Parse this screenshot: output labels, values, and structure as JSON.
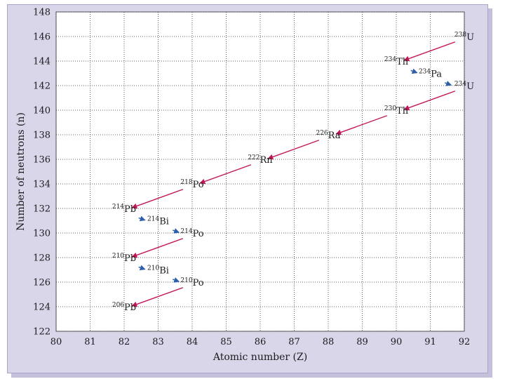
{
  "chart_data": {
    "type": "scatter",
    "title": "",
    "xlabel": "Atomic number (Z)",
    "ylabel": "Number of neutrons (n)",
    "xlim": [
      80,
      92
    ],
    "ylim": [
      122,
      148
    ],
    "x_ticks": [
      "80",
      "81",
      "82",
      "83",
      "84",
      "85",
      "86",
      "87",
      "88",
      "89",
      "90",
      "91",
      "92"
    ],
    "y_ticks": [
      "122",
      "124",
      "126",
      "128",
      "130",
      "132",
      "134",
      "136",
      "138",
      "140",
      "142",
      "144",
      "146",
      "148"
    ],
    "grid": true,
    "legend": "none",
    "colors": {
      "alpha": "#c2185b",
      "beta": "#2e5fa8",
      "plot_bg": "#ffffff",
      "frame": "#d9d6ea"
    },
    "nuclides": [
      {
        "mass": "238",
        "symbol": "U",
        "z": 92,
        "n": 146
      },
      {
        "mass": "234",
        "symbol": "Th",
        "z": 90,
        "n": 144
      },
      {
        "mass": "234",
        "symbol": "Pa",
        "z": 91,
        "n": 143
      },
      {
        "mass": "234",
        "symbol": "U",
        "z": 92,
        "n": 142
      },
      {
        "mass": "230",
        "symbol": "Th",
        "z": 90,
        "n": 140
      },
      {
        "mass": "226",
        "symbol": "Ra",
        "z": 88,
        "n": 138
      },
      {
        "mass": "222",
        "symbol": "Rn",
        "z": 86,
        "n": 136
      },
      {
        "mass": "218",
        "symbol": "Po",
        "z": 84,
        "n": 134
      },
      {
        "mass": "214",
        "symbol": "Pb",
        "z": 82,
        "n": 132
      },
      {
        "mass": "214",
        "symbol": "Bi",
        "z": 83,
        "n": 131
      },
      {
        "mass": "214",
        "symbol": "Po",
        "z": 84,
        "n": 130
      },
      {
        "mass": "210",
        "symbol": "Pb",
        "z": 82,
        "n": 128
      },
      {
        "mass": "210",
        "symbol": "Bi",
        "z": 83,
        "n": 127
      },
      {
        "mass": "210",
        "symbol": "Po",
        "z": 84,
        "n": 126
      },
      {
        "mass": "206",
        "symbol": "Pb",
        "z": 82,
        "n": 124
      }
    ],
    "decays": [
      {
        "type": "alpha",
        "from": [
          92,
          146
        ],
        "to": [
          90,
          144
        ]
      },
      {
        "type": "beta",
        "from": [
          90,
          144
        ],
        "to": [
          91,
          143
        ]
      },
      {
        "type": "beta",
        "from": [
          91,
          143
        ],
        "to": [
          92,
          142
        ]
      },
      {
        "type": "alpha",
        "from": [
          92,
          142
        ],
        "to": [
          90,
          140
        ]
      },
      {
        "type": "alpha",
        "from": [
          90,
          140
        ],
        "to": [
          88,
          138
        ]
      },
      {
        "type": "alpha",
        "from": [
          88,
          138
        ],
        "to": [
          86,
          136
        ]
      },
      {
        "type": "alpha",
        "from": [
          86,
          136
        ],
        "to": [
          84,
          134
        ]
      },
      {
        "type": "alpha",
        "from": [
          84,
          134
        ],
        "to": [
          82,
          132
        ]
      },
      {
        "type": "beta",
        "from": [
          82,
          132
        ],
        "to": [
          83,
          131
        ]
      },
      {
        "type": "beta",
        "from": [
          83,
          131
        ],
        "to": [
          84,
          130
        ]
      },
      {
        "type": "alpha",
        "from": [
          84,
          130
        ],
        "to": [
          82,
          128
        ]
      },
      {
        "type": "beta",
        "from": [
          82,
          128
        ],
        "to": [
          83,
          127
        ]
      },
      {
        "type": "beta",
        "from": [
          83,
          127
        ],
        "to": [
          84,
          126
        ]
      },
      {
        "type": "alpha",
        "from": [
          84,
          126
        ],
        "to": [
          82,
          124
        ]
      }
    ]
  }
}
